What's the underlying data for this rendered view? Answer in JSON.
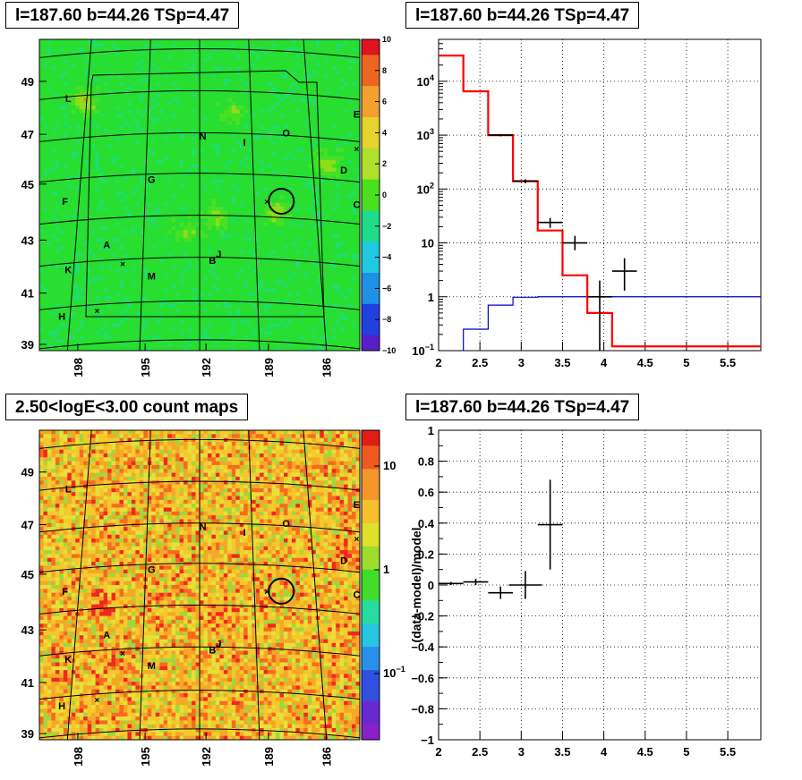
{
  "panels": {
    "tl_title": "l=187.60 b=44.26 TSp=4.47",
    "tr_title": "l=187.60 b=44.26 TSp=4.47",
    "bl_title": "2.50<logE<3.00 count maps",
    "br_title": "l=187.60 b=44.26 TSp=4.47"
  },
  "colors": {
    "data": "#000000",
    "model": "#ff0000",
    "background_model": "#0000cc",
    "tsmap_base": "#22dd22",
    "countmap_base": "#f5b428"
  },
  "chart_data": [
    {
      "type": "heatmap",
      "title": "l=187.60 b=44.26 TSp=4.47",
      "x_ticks": [
        "198",
        "195",
        "192",
        "189",
        "186"
      ],
      "y_ticks": [
        "49",
        "47",
        "45",
        "43",
        "41",
        "39"
      ],
      "colorbar_ticks": [
        "10",
        "8",
        "6",
        "4",
        "2",
        "0",
        "−2",
        "−4",
        "−6",
        "−8",
        "−10"
      ],
      "zlim": [
        -10,
        10
      ],
      "source_labels": [
        "L",
        "E",
        "N",
        "O",
        "I",
        "D",
        "G",
        "F",
        "C",
        "A",
        "J",
        "B",
        "K",
        "M",
        "H"
      ]
    },
    {
      "type": "line",
      "title": "l=187.60 b=44.26 TSp=4.47",
      "log_y": true,
      "xlim": [
        2,
        5.9
      ],
      "ylim": [
        0.1,
        60000
      ],
      "x_ticks": [
        "2",
        "2.5",
        "3",
        "3.5",
        "4",
        "4.5",
        "5",
        "5.5"
      ],
      "y_ticks": [
        {
          "base": "10",
          "exp": "4"
        },
        {
          "base": "10",
          "exp": "3"
        },
        {
          "base": "10",
          "exp": "2"
        },
        {
          "base": "10",
          "exp": ""
        },
        {
          "base": "1",
          "exp": ""
        },
        {
          "base": "10",
          "exp": "−1"
        }
      ],
      "model_steps": {
        "edges": [
          2.0,
          2.3,
          2.6,
          2.9,
          3.2,
          3.5,
          3.8,
          4.1,
          4.4,
          5.9
        ],
        "values": [
          30000,
          6500,
          1000,
          140,
          17,
          2.5,
          0.5,
          0.12,
          0.12
        ]
      },
      "background_steps": {
        "edges": [
          2.3,
          2.6,
          2.9,
          3.2,
          3.5,
          5.9
        ],
        "values": [
          0.25,
          0.7,
          0.98,
          1.0,
          1.0
        ]
      },
      "data_points": [
        {
          "x": 2.75,
          "y": 1000,
          "xerr": 0.15,
          "ylo": 950,
          "yhi": 1050
        },
        {
          "x": 3.05,
          "y": 140,
          "xerr": 0.15,
          "ylo": 128,
          "yhi": 152
        },
        {
          "x": 3.35,
          "y": 24,
          "xerr": 0.15,
          "ylo": 19,
          "yhi": 29
        },
        {
          "x": 3.65,
          "y": 10,
          "xerr": 0.15,
          "ylo": 7.3,
          "yhi": 13.5
        },
        {
          "x": 3.95,
          "y": 1.0,
          "xerr": 0.15,
          "ylo": 0.1,
          "yhi": 2.0
        },
        {
          "x": 4.25,
          "y": 3.0,
          "xerr": 0.15,
          "ylo": 1.3,
          "yhi": 5.2
        }
      ]
    },
    {
      "type": "heatmap",
      "title": "2.50<logE<3.00 count maps",
      "x_ticks": [
        "198",
        "195",
        "192",
        "189",
        "186"
      ],
      "y_ticks": [
        "49",
        "47",
        "45",
        "43",
        "41",
        "39"
      ],
      "colorbar_ticks": [
        {
          "base": "10",
          "exp": ""
        },
        {
          "base": "1",
          "exp": ""
        },
        {
          "base": "10",
          "exp": "−1"
        }
      ],
      "source_labels": [
        "L",
        "E",
        "N",
        "O",
        "I",
        "D",
        "G",
        "F",
        "C",
        "A",
        "J",
        "B",
        "K",
        "M",
        "H"
      ]
    },
    {
      "type": "scatter",
      "title": "l=187.60 b=44.26 TSp=4.47",
      "ylabel": "(data-model)/model",
      "xlim": [
        2,
        5.9
      ],
      "ylim": [
        -1,
        1
      ],
      "x_ticks": [
        "2",
        "2.5",
        "3",
        "3.5",
        "4",
        "4.5",
        "5",
        "5.5"
      ],
      "y_ticks": [
        "1",
        "0.8",
        "0.6",
        "0.4",
        "0.2",
        "0",
        "−0.2",
        "−0.4",
        "−0.6",
        "−0.8",
        "−1"
      ],
      "points": [
        {
          "x": 2.15,
          "y": 0.01,
          "xerr": 0.15,
          "yerr": 0.01
        },
        {
          "x": 2.45,
          "y": 0.02,
          "xerr": 0.15,
          "yerr": 0.02
        },
        {
          "x": 2.75,
          "y": -0.05,
          "xerr": 0.15,
          "yerr": 0.04
        },
        {
          "x": 3.05,
          "y": 0.0,
          "xerr": 0.2,
          "yerr": 0.09
        },
        {
          "x": 3.35,
          "y": 0.39,
          "xerr": 0.15,
          "yerr": 0.29
        }
      ]
    }
  ]
}
